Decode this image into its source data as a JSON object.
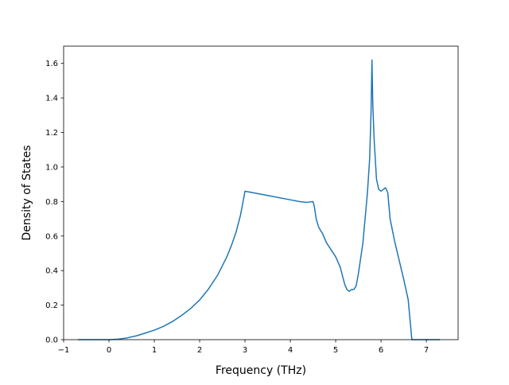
{
  "chart_data": {
    "type": "line",
    "title": "",
    "xlabel": "Frequency (THz)",
    "ylabel": "Density of States",
    "xlim": [
      -1.0,
      7.7
    ],
    "ylim": [
      0.0,
      1.7
    ],
    "xticks": [
      -1,
      0,
      1,
      2,
      3,
      4,
      5,
      6,
      7
    ],
    "xtick_labels": [
      "−1",
      "0",
      "1",
      "2",
      "3",
      "4",
      "5",
      "6",
      "7"
    ],
    "yticks": [
      0.0,
      0.2,
      0.4,
      0.6,
      0.8,
      1.0,
      1.2,
      1.4,
      1.6
    ],
    "ytick_labels": [
      "0.0",
      "0.2",
      "0.4",
      "0.6",
      "0.8",
      "1.0",
      "1.2",
      "1.4",
      "1.6"
    ],
    "grid": false,
    "legend": "none",
    "series": [
      {
        "color": "#1f77b4",
        "x": [
          -0.68,
          0.0,
          0.2,
          0.4,
          0.6,
          0.8,
          1.0,
          1.2,
          1.4,
          1.6,
          1.8,
          2.0,
          2.2,
          2.4,
          2.6,
          2.7,
          2.8,
          2.9,
          2.95,
          3.0,
          3.5,
          4.0,
          4.2,
          4.35,
          4.5,
          4.53,
          4.57,
          4.62,
          4.67,
          4.7,
          4.8,
          5.0,
          5.1,
          5.15,
          5.2,
          5.25,
          5.3,
          5.35,
          5.4,
          5.45,
          5.5,
          5.6,
          5.7,
          5.75,
          5.78,
          5.8,
          5.82,
          5.85,
          5.9,
          5.95,
          6.0,
          6.05,
          6.1,
          6.15,
          6.2,
          6.3,
          6.4,
          6.5,
          6.6,
          6.68,
          6.72,
          7.3
        ],
        "values": [
          0.0,
          0.0,
          0.003,
          0.01,
          0.022,
          0.038,
          0.055,
          0.077,
          0.105,
          0.14,
          0.18,
          0.23,
          0.295,
          0.375,
          0.48,
          0.545,
          0.62,
          0.72,
          0.79,
          0.86,
          0.835,
          0.81,
          0.8,
          0.795,
          0.8,
          0.77,
          0.7,
          0.655,
          0.63,
          0.62,
          0.56,
          0.48,
          0.42,
          0.37,
          0.32,
          0.29,
          0.28,
          0.29,
          0.29,
          0.31,
          0.38,
          0.56,
          0.85,
          1.05,
          1.32,
          1.62,
          1.35,
          1.15,
          0.93,
          0.87,
          0.86,
          0.87,
          0.88,
          0.85,
          0.7,
          0.57,
          0.46,
          0.35,
          0.23,
          0.0,
          0.0,
          0.0
        ]
      }
    ]
  }
}
